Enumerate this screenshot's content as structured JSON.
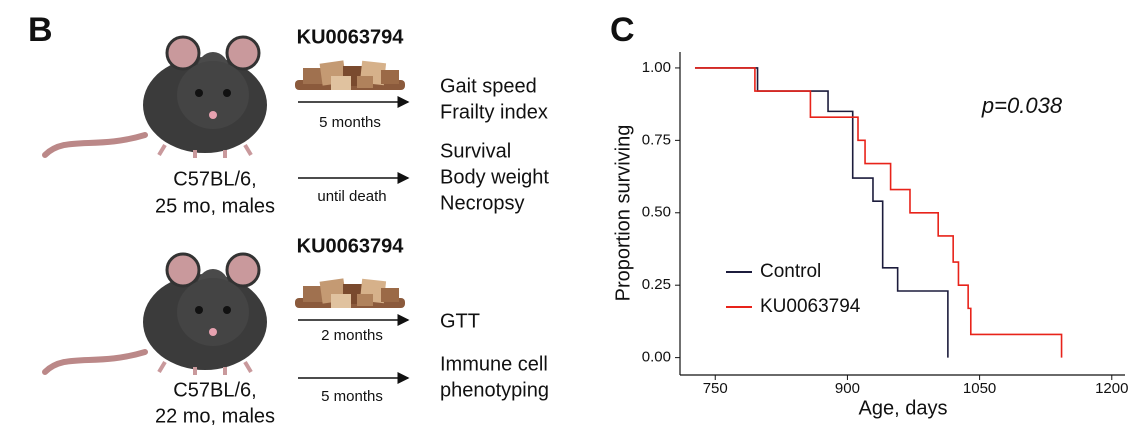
{
  "panel_b": {
    "label": "B",
    "groups": [
      {
        "treatment": "KU0063794",
        "strain": [
          "C57BL/6,",
          "25 mo, males"
        ],
        "arms": [
          {
            "duration": "5 months",
            "outcomes": [
              "Gait speed",
              "Frailty index"
            ]
          },
          {
            "duration": "until death",
            "outcomes": [
              "Survival",
              "Body weight",
              "Necropsy"
            ]
          }
        ]
      },
      {
        "treatment": "KU0063794",
        "strain": [
          "C57BL/6,",
          "22 mo, males"
        ],
        "arms": [
          {
            "duration": "2 months",
            "outcomes": [
              "GTT"
            ]
          },
          {
            "duration": "5 months",
            "outcomes": [
              "Immune cell",
              "phenotyping"
            ]
          }
        ]
      }
    ]
  },
  "chart_data": {
    "type": "step",
    "panel_label": "C",
    "x_label": "Age, days",
    "y_label": "Proportion surviving",
    "annotation": "p=0.038",
    "series": [
      {
        "name": "Control",
        "color": "#1c1c3c",
        "x": [
          727,
          798,
          878,
          906,
          929,
          940,
          957,
          1014
        ],
        "values": [
          1,
          0.92,
          0.85,
          0.62,
          0.54,
          0.31,
          0.23,
          0
        ]
      },
      {
        "name": "KU0063794",
        "color": "#e8231a",
        "x": [
          727,
          795,
          858,
          912,
          920,
          949,
          971,
          1003,
          1020,
          1026,
          1037,
          1040,
          1143
        ],
        "values": [
          1,
          0.92,
          0.83,
          0.75,
          0.67,
          0.58,
          0.5,
          0.42,
          0.33,
          0.25,
          0.17,
          0.08,
          0
        ]
      }
    ],
    "xlim": [
      710,
      1215
    ],
    "xticks": [
      750,
      900,
      1050,
      1200
    ],
    "ylim": [
      -0.06,
      1.055
    ],
    "yticks": [
      {
        "value": 0,
        "label": "0.00"
      },
      {
        "value": 0.25,
        "label": "0.25"
      },
      {
        "value": 0.5,
        "label": "0.50"
      },
      {
        "value": 0.75,
        "label": "0.75"
      },
      {
        "value": 1,
        "label": "1.00"
      }
    ]
  }
}
